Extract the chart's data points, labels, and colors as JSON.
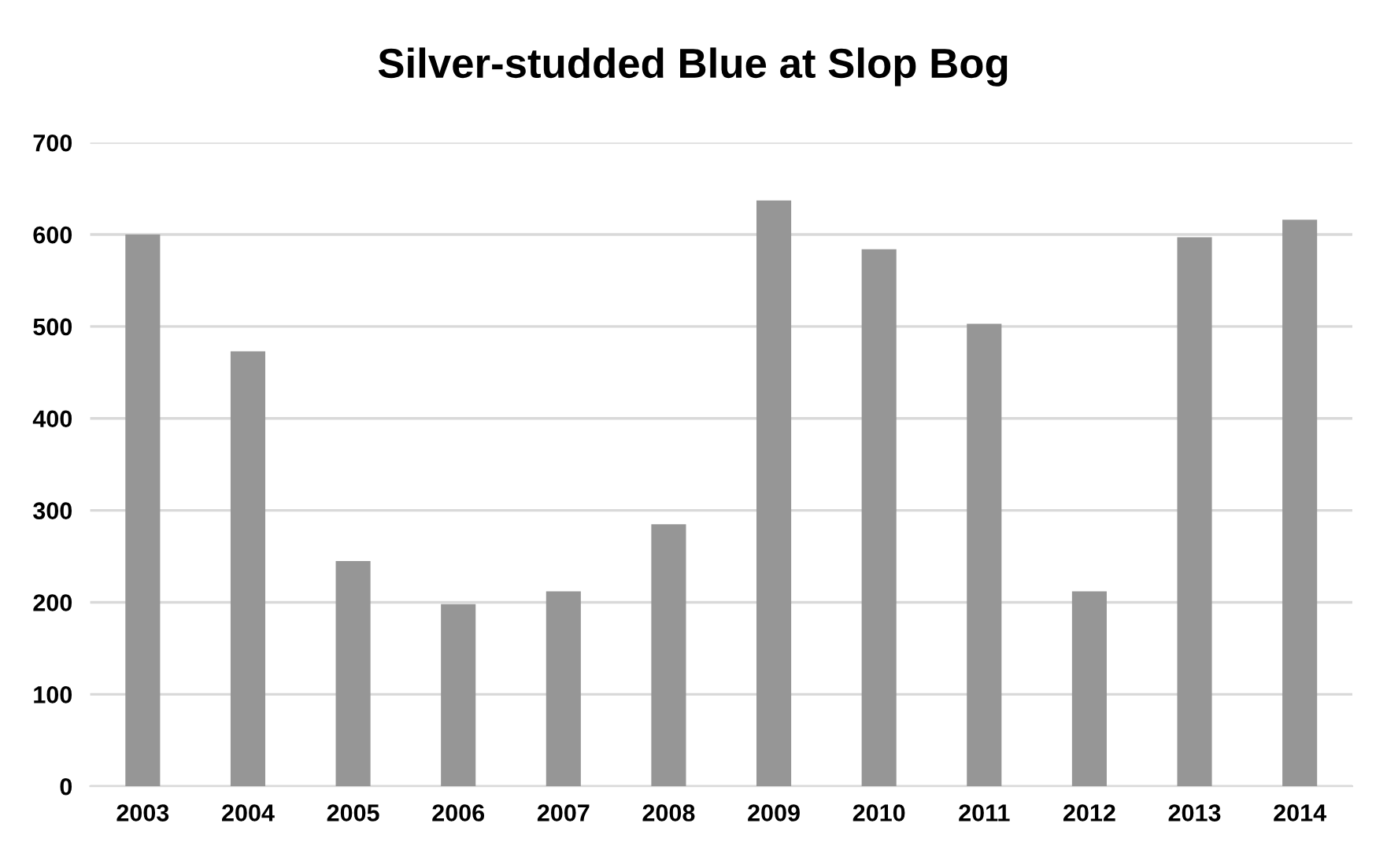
{
  "chart_data": {
    "type": "bar",
    "title": "Silver-studded Blue at Slop Bog",
    "categories": [
      "2003",
      "2004",
      "2005",
      "2006",
      "2007",
      "2008",
      "2009",
      "2010",
      "2011",
      "2012",
      "2013",
      "2014"
    ],
    "values": [
      600,
      473,
      245,
      198,
      212,
      285,
      637,
      584,
      503,
      212,
      597,
      616
    ],
    "color": "#969696",
    "ylim": [
      0,
      700
    ],
    "yticks": [
      0,
      100,
      200,
      300,
      400,
      500,
      600,
      700
    ],
    "grid": "y"
  }
}
